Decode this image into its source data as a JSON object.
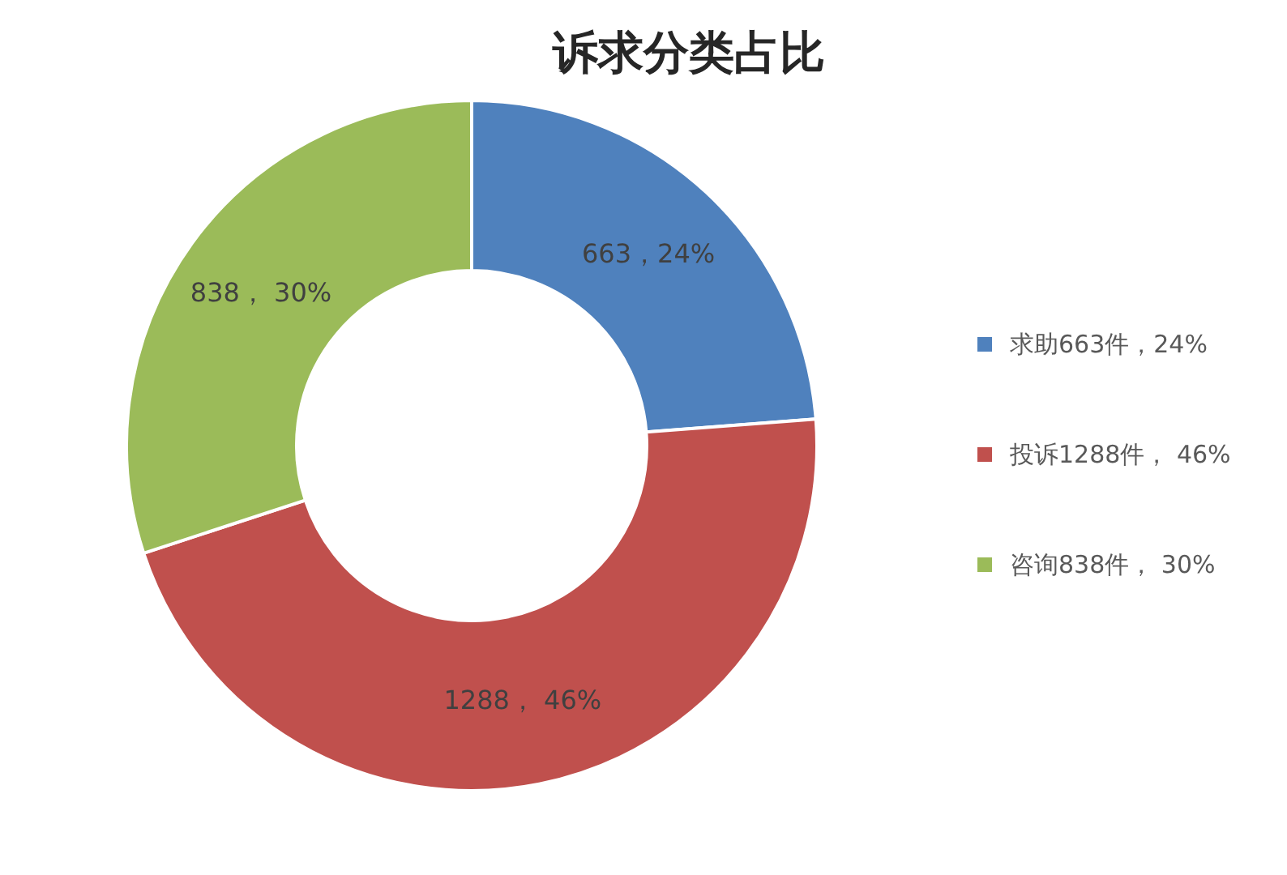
{
  "chart_data": {
    "type": "donut",
    "title": "诉求分类占比",
    "categories": [
      "求助663件，24%",
      "投诉1288件， 46%",
      "咨询838件， 30%"
    ],
    "values": [
      663,
      1288,
      838
    ],
    "colors": [
      "#4f81bd",
      "#c0504d",
      "#9bbb59"
    ],
    "value_labels": [
      "663，24%",
      "1288， 46%",
      "838， 30%"
    ],
    "legend": "right"
  }
}
